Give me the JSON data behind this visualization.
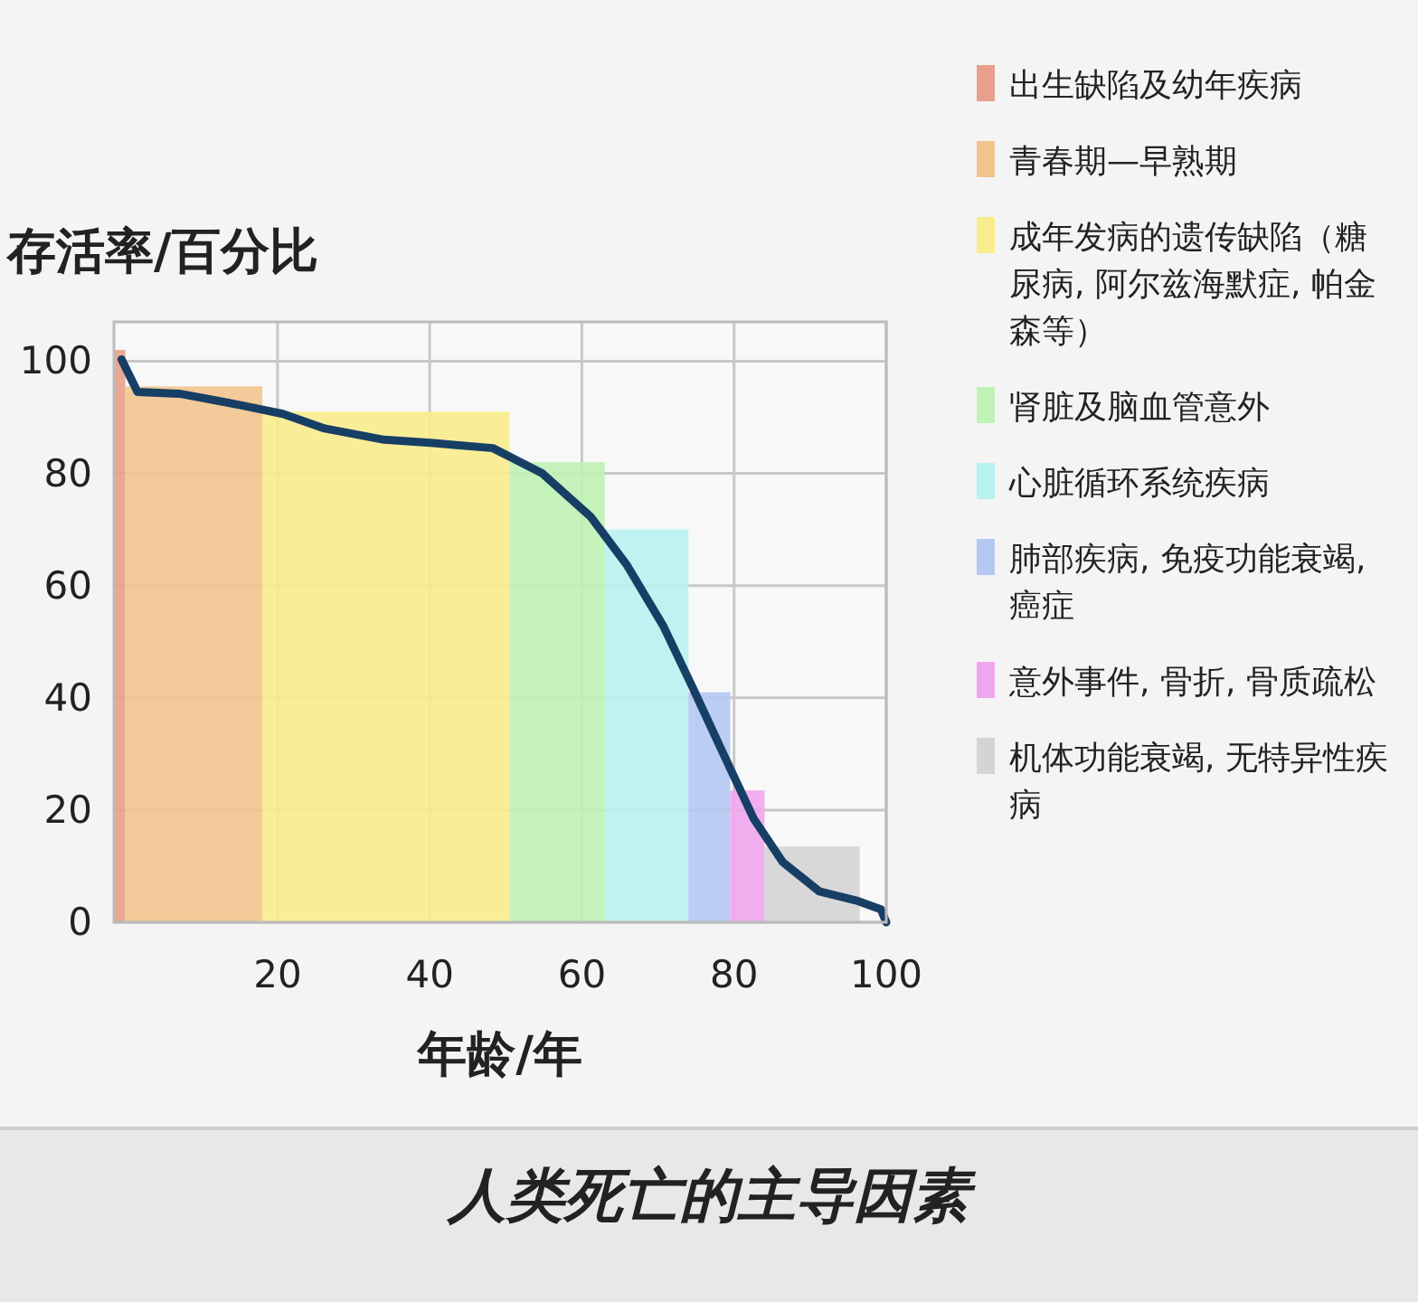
{
  "chart_data": {
    "type": "histogram",
    "title": "人类死亡的主导因素",
    "xlabel": "年龄/年",
    "ylabel": "存活率/百分比",
    "xlim": [
      -1.5,
      100
    ],
    "ylim": [
      0,
      107
    ],
    "xticks": [
      20,
      40,
      60,
      80,
      100
    ],
    "yticks": [
      0,
      20,
      40,
      60,
      80,
      100
    ],
    "grid": true,
    "legend": "right",
    "series": [
      {
        "name": "出生缺陷及幼年疾病",
        "color": "#e8a08c",
        "bins": [
          -1.5,
          0
        ],
        "values": [
          102
        ]
      },
      {
        "name": "青春期—早熟期",
        "color": "#f2c48e",
        "bins": [
          0,
          18
        ],
        "values": [
          95.5
        ]
      },
      {
        "name": "成年发病的遗传缺陷（糖尿病, 阿尔兹海默症, 帕金森等）",
        "color": "#f8ec8c",
        "bins": [
          18,
          50.5
        ],
        "values": [
          91
        ]
      },
      {
        "name": "肾脏及脑血管意外",
        "color": "#bff2b4",
        "bins": [
          50.5,
          63
        ],
        "values": [
          82
        ]
      },
      {
        "name": "心脏循环系统疾病",
        "color": "#b8f2f0",
        "bins": [
          63,
          74
        ],
        "values": [
          70
        ]
      },
      {
        "name": "肺部疾病, 免疫功能衰竭, 癌症",
        "color": "#b4c8f2",
        "bins": [
          74,
          79.5
        ],
        "values": [
          41
        ]
      },
      {
        "name": "意外事件, 骨折, 骨质疏松",
        "color": "#f0a6ee",
        "bins": [
          79.5,
          84
        ],
        "values": [
          23.5
        ]
      },
      {
        "name": "机体功能衰竭, 无特异性疾病",
        "color": "#d4d4d4",
        "bins": [
          84,
          96.5
        ],
        "values": [
          13.5
        ]
      },
      {
        "type": "line",
        "color": "#173f66",
        "x": [
          -0.5,
          1.6,
          7.1,
          15,
          20.7,
          26.2,
          34,
          40.5,
          48.3,
          54.8,
          61.2,
          65.9,
          70.7,
          74.5,
          78.6,
          82.6,
          86.4,
          91.2,
          96,
          99.3,
          100
        ],
        "values": [
          100.3,
          94.5,
          94.2,
          92.2,
          90.6,
          88,
          86,
          85.4,
          84.5,
          80,
          72.2,
          63.7,
          52.8,
          42,
          30,
          18.4,
          10.7,
          5.5,
          3.9,
          2.3,
          0
        ]
      }
    ]
  }
}
